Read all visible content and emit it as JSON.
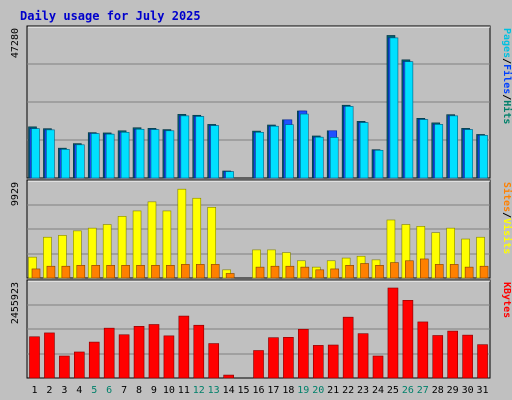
{
  "colors": {
    "background": "#c0c0c0",
    "plot_bg": "#c0c0c0",
    "grid": "#808080",
    "title": "#0000cc",
    "hits": "#00a0c0",
    "hits_fill": "#00e0ff",
    "files": "#0040ff",
    "files_fill": "#2050ff",
    "pages": "#00c0e0",
    "visits": "#ffff00",
    "sites": "#ff8000",
    "kbytes": "#ff0000",
    "weekend_label": "#00806a",
    "weekday_label": "#000000"
  },
  "chart_data": {
    "type": "bar",
    "title": "Daily usage for July 2025",
    "categories": [
      "1",
      "2",
      "3",
      "4",
      "5",
      "6",
      "7",
      "8",
      "9",
      "10",
      "11",
      "12",
      "13",
      "14",
      "15",
      "16",
      "17",
      "18",
      "19",
      "20",
      "21",
      "22",
      "23",
      "24",
      "25",
      "26",
      "27",
      "28",
      "29",
      "30",
      "31"
    ],
    "weekend_days": [
      "5",
      "6",
      "12",
      "13",
      "19",
      "20",
      "26",
      "27"
    ],
    "panels": [
      {
        "id": "top",
        "max_label": "47280",
        "ymax": 47280,
        "legend": [
          "Pages",
          "/",
          "Files",
          "/",
          "Hits"
        ],
        "legend_colors": [
          "#00c0e0",
          "#000000",
          "#0040ff",
          "#000000",
          "#00806a"
        ],
        "series": [
          {
            "name": "Hits",
            "values": [
              16800,
              16200,
              9800,
              11300,
              14900,
              14800,
              15500,
              16500,
              16300,
              15900,
              20900,
              20600,
              17600,
              2300,
              0,
              15400,
              17400,
              19100,
              22000,
              13800,
              15500,
              23900,
              18600,
              9300,
              46800,
              38800,
              19600,
              18100,
              20800,
              16300,
              14300
            ]
          },
          {
            "name": "Files",
            "values": [
              16200,
              15800,
              9400,
              10900,
              14600,
              14400,
              15000,
              16000,
              15900,
              15500,
              20400,
              20200,
              17200,
              2100,
              0,
              15000,
              17000,
              19100,
              22000,
              13400,
              15500,
              23500,
              18200,
              9100,
              46000,
              38200,
              19200,
              17600,
              20400,
              15900,
              14000
            ]
          },
          {
            "name": "Pages",
            "values": [
              16200,
              15800,
              9400,
              10900,
              14600,
              14400,
              15000,
              16000,
              15900,
              15500,
              20400,
              20200,
              17200,
              2100,
              0,
              15000,
              17000,
              17500,
              21000,
              13400,
              13300,
              23500,
              18200,
              9100,
              46000,
              38200,
              19200,
              17600,
              20400,
              15900,
              14000
            ]
          }
        ]
      },
      {
        "id": "middle",
        "max_label": "9929",
        "ymax": 9929,
        "legend": [
          "Sites",
          "/",
          "Visits"
        ],
        "legend_colors": [
          "#ff8000",
          "#000000",
          "#ffff00"
        ],
        "series": [
          {
            "name": "Visits",
            "values": [
              2300,
              4500,
              4700,
              5200,
              5500,
              5900,
              6800,
              7400,
              8400,
              7400,
              9800,
              8800,
              7800,
              900,
              0,
              3100,
              3100,
              2800,
              1900,
              1200,
              1900,
              2200,
              2400,
              2000,
              6400,
              5900,
              5700,
              5000,
              5500,
              4300,
              4500
            ]
          },
          {
            "name": "Sites",
            "values": [
              1000,
              1300,
              1300,
              1400,
              1400,
              1400,
              1400,
              1400,
              1400,
              1400,
              1500,
              1500,
              1500,
              500,
              0,
              1200,
              1300,
              1300,
              1200,
              900,
              1000,
              1400,
              1600,
              1400,
              1700,
              1900,
              2100,
              1500,
              1500,
              1200,
              1300
            ]
          }
        ]
      },
      {
        "id": "bottom",
        "max_label": "2455923",
        "ymax": 2455923,
        "legend": [
          "KBytes"
        ],
        "legend_colors": [
          "#ff0000"
        ],
        "series": [
          {
            "name": "KBytes",
            "values": [
              1125000,
              1230000,
              600000,
              710000,
              980000,
              1360000,
              1180000,
              1410000,
              1460000,
              1150000,
              1690000,
              1440000,
              940000,
              80000,
              0,
              750000,
              1100000,
              1110000,
              1330000,
              890000,
              900000,
              1660000,
              1210000,
              600000,
              2455923,
              2120000,
              1530000,
              1160000,
              1280000,
              1170000,
              910000
            ]
          }
        ]
      }
    ]
  }
}
